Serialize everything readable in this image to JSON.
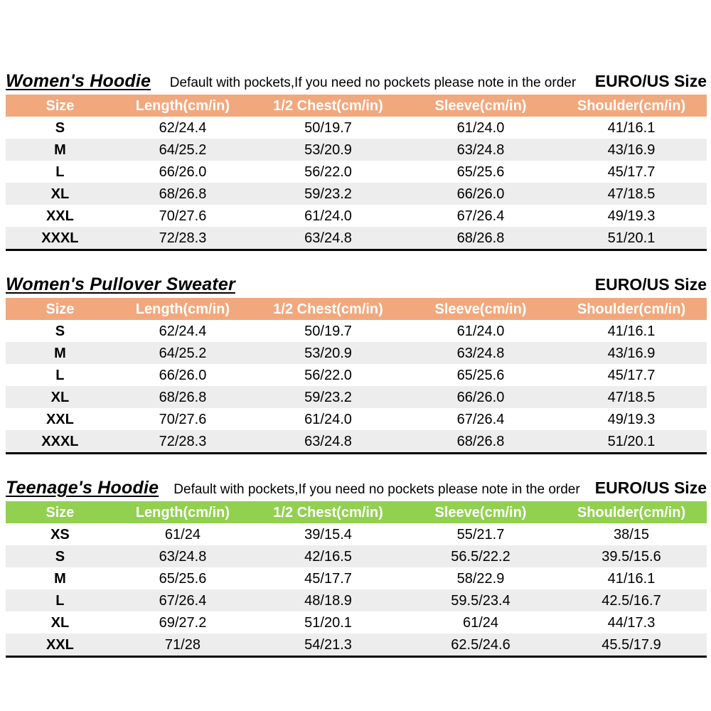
{
  "page": {
    "background": "#ffffff",
    "euro_label": "EURO/US Size",
    "pockets_note": "Default with pockets,If you need no pockets please note in the order"
  },
  "colors": {
    "womens_header": "#F2A87D",
    "teenage_header": "#92D050",
    "row_alt": "#EDEDED",
    "header_text": "#FFFFFF",
    "table_bottom_border": "#000000"
  },
  "tables": [
    {
      "id": "womens-hoodie",
      "title": "Women's Hoodie",
      "note": "Default with pockets,If you need no pockets please note in the order",
      "euro_label": "EURO/US Size",
      "header_color": "#F2A87D",
      "columns": [
        "Size",
        "Length(cm/in)",
        "1/2 Chest(cm/in)",
        "Sleeve(cm/in)",
        "Shoulder(cm/in)"
      ],
      "rows": [
        [
          "S",
          "62/24.4",
          "50/19.7",
          "61/24.0",
          "41/16.1"
        ],
        [
          "M",
          "64/25.2",
          "53/20.9",
          "63/24.8",
          "43/16.9"
        ],
        [
          "L",
          "66/26.0",
          "56/22.0",
          "65/25.6",
          "45/17.7"
        ],
        [
          "XL",
          "68/26.8",
          "59/23.2",
          "66/26.0",
          "47/18.5"
        ],
        [
          "XXL",
          "70/27.6",
          "61/24.0",
          "67/26.4",
          "49/19.3"
        ],
        [
          "XXXL",
          "72/28.3",
          "63/24.8",
          "68/26.8",
          "51/20.1"
        ]
      ]
    },
    {
      "id": "womens-pullover-sweater",
      "title": "Women's Pullover Sweater",
      "note": "",
      "euro_label": "EURO/US Size",
      "header_color": "#F2A87D",
      "columns": [
        "Size",
        "Length(cm/in)",
        "1/2 Chest(cm/in)",
        "Sleeve(cm/in)",
        "Shoulder(cm/in)"
      ],
      "rows": [
        [
          "S",
          "62/24.4",
          "50/19.7",
          "61/24.0",
          "41/16.1"
        ],
        [
          "M",
          "64/25.2",
          "53/20.9",
          "63/24.8",
          "43/16.9"
        ],
        [
          "L",
          "66/26.0",
          "56/22.0",
          "65/25.6",
          "45/17.7"
        ],
        [
          "XL",
          "68/26.8",
          "59/23.2",
          "66/26.0",
          "47/18.5"
        ],
        [
          "XXL",
          "70/27.6",
          "61/24.0",
          "67/26.4",
          "49/19.3"
        ],
        [
          "XXXL",
          "72/28.3",
          "63/24.8",
          "68/26.8",
          "51/20.1"
        ]
      ]
    },
    {
      "id": "teenages-hoodie",
      "title": "Teenage's Hoodie",
      "note": "Default with pockets,If you need no pockets please note in the order",
      "euro_label": "EURO/US Size",
      "header_color": "#92D050",
      "columns": [
        "Size",
        "Length(cm/in)",
        "1/2 Chest(cm/in)",
        "Sleeve(cm/in)",
        "Shoulder(cm/in)"
      ],
      "rows": [
        [
          "XS",
          "61/24",
          "39/15.4",
          "55/21.7",
          "38/15"
        ],
        [
          "S",
          "63/24.8",
          "42/16.5",
          "56.5/22.2",
          "39.5/15.6"
        ],
        [
          "M",
          "65/25.6",
          "45/17.7",
          "58/22.9",
          "41/16.1"
        ],
        [
          "L",
          "67/26.4",
          "48/18.9",
          "59.5/23.4",
          "42.5/16.7"
        ],
        [
          "XL",
          "69/27.2",
          "51/20.1",
          "61/24",
          "44/17.3"
        ],
        [
          "XXL",
          "71/28",
          "54/21.3",
          "62.5/24.6",
          "45.5/17.9"
        ]
      ]
    }
  ]
}
